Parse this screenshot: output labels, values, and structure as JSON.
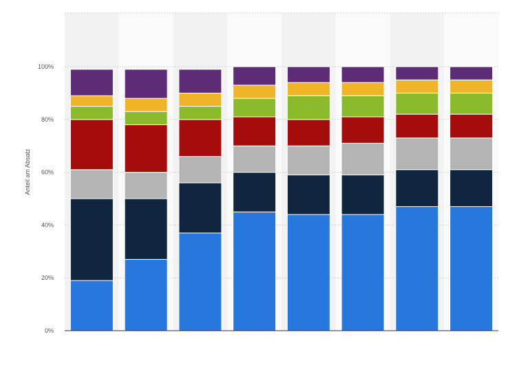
{
  "chart_data": {
    "type": "bar",
    "stacked": true,
    "title": "",
    "xlabel": "",
    "ylabel": "Anteil am Absatz",
    "ylim": [
      0,
      100
    ],
    "y_ticks": [
      "0%",
      "20%",
      "40%",
      "60%",
      "80%",
      "100%"
    ],
    "grid": true,
    "legend": "none",
    "categories": [
      "",
      "",
      "",
      "",
      "",
      "",
      "",
      ""
    ],
    "series": [
      {
        "color": "#2877dc",
        "values": [
          19,
          27,
          37,
          45,
          44,
          44,
          47,
          47
        ]
      },
      {
        "color": "#10263e",
        "values": [
          31,
          23,
          19,
          15,
          15,
          15,
          14,
          14
        ]
      },
      {
        "color": "#b4b4b4",
        "values": [
          11,
          10,
          10,
          10,
          11,
          12,
          12,
          12
        ]
      },
      {
        "color": "#a50d0d",
        "values": [
          19,
          18,
          14,
          11,
          10,
          10,
          9,
          9
        ]
      },
      {
        "color": "#88ba2b",
        "values": [
          5,
          5,
          5,
          7,
          9,
          8,
          8,
          8
        ]
      },
      {
        "color": "#f0b428",
        "values": [
          4,
          5,
          5,
          5,
          5,
          5,
          5,
          5
        ]
      },
      {
        "color": "#5e2c76",
        "values": [
          10,
          11,
          9,
          7,
          6,
          6,
          5,
          5
        ]
      }
    ]
  }
}
